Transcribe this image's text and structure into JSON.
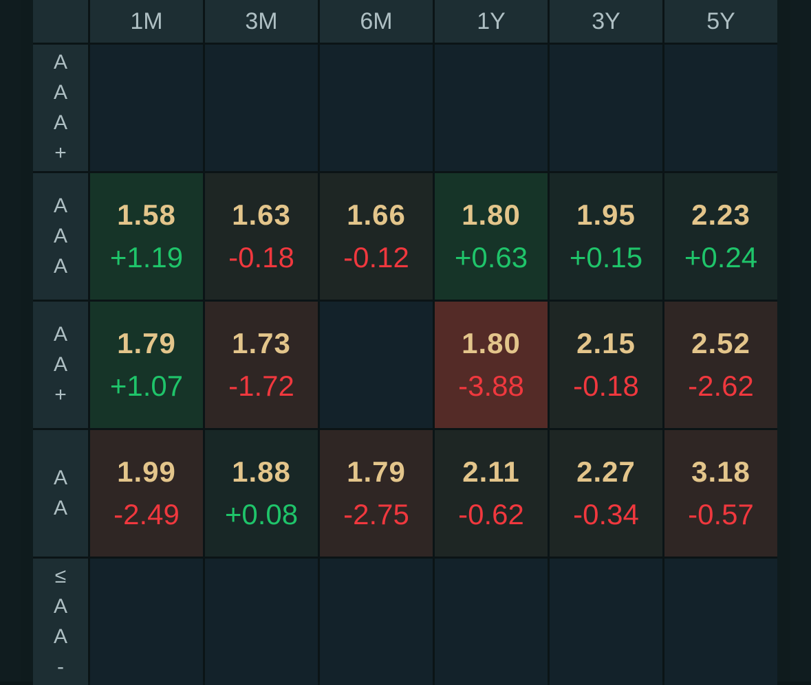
{
  "colors": {
    "yield_text": "#e3c58b",
    "positive": "#1fc46a",
    "negative": "#f0383e",
    "header_bg": "#1d2e33",
    "header_text": "#aebfc3"
  },
  "columns": [
    "1M",
    "3M",
    "6M",
    "1Y",
    "3Y",
    "5Y"
  ],
  "rows": [
    {
      "label_chars": [
        "A",
        "A",
        "A",
        "+"
      ],
      "cells": [
        {
          "yield": null,
          "change": null,
          "tone": "empty"
        },
        {
          "yield": null,
          "change": null,
          "tone": "empty"
        },
        {
          "yield": null,
          "change": null,
          "tone": "empty"
        },
        {
          "yield": null,
          "change": null,
          "tone": "empty"
        },
        {
          "yield": null,
          "change": null,
          "tone": "empty"
        },
        {
          "yield": null,
          "change": null,
          "tone": "empty"
        }
      ]
    },
    {
      "label_chars": [
        "A",
        "A",
        "A"
      ],
      "cells": [
        {
          "yield": "1.58",
          "change": "+1.19",
          "tone": "pos-strong"
        },
        {
          "yield": "1.63",
          "change": "-0.18",
          "tone": "neg-mild"
        },
        {
          "yield": "1.66",
          "change": "-0.12",
          "tone": "neg-mild"
        },
        {
          "yield": "1.80",
          "change": "+0.63",
          "tone": "pos-strong"
        },
        {
          "yield": "1.95",
          "change": "+0.15",
          "tone": "pos-mild"
        },
        {
          "yield": "2.23",
          "change": "+0.24",
          "tone": "pos-mild"
        }
      ]
    },
    {
      "label_chars": [
        "A",
        "A",
        "+"
      ],
      "cells": [
        {
          "yield": "1.79",
          "change": "+1.07",
          "tone": "pos-strong"
        },
        {
          "yield": "1.73",
          "change": "-1.72",
          "tone": "neg-med"
        },
        {
          "yield": null,
          "change": null,
          "tone": "empty"
        },
        {
          "yield": "1.80",
          "change": "-3.88",
          "tone": "neg-strong"
        },
        {
          "yield": "2.15",
          "change": "-0.18",
          "tone": "neg-mild"
        },
        {
          "yield": "2.52",
          "change": "-2.62",
          "tone": "neg-med"
        }
      ]
    },
    {
      "label_chars": [
        "A",
        "A"
      ],
      "cells": [
        {
          "yield": "1.99",
          "change": "-2.49",
          "tone": "neg-med"
        },
        {
          "yield": "1.88",
          "change": "+0.08",
          "tone": "pos-mild"
        },
        {
          "yield": "1.79",
          "change": "-2.75",
          "tone": "neg-med"
        },
        {
          "yield": "2.11",
          "change": "-0.62",
          "tone": "neg-mild"
        },
        {
          "yield": "2.27",
          "change": "-0.34",
          "tone": "neg-mild"
        },
        {
          "yield": "3.18",
          "change": "-0.57",
          "tone": "neg-med"
        }
      ]
    },
    {
      "label_chars": [
        "≤",
        "A",
        "A",
        "-"
      ],
      "cells": [
        {
          "yield": null,
          "change": null,
          "tone": "empty"
        },
        {
          "yield": null,
          "change": null,
          "tone": "empty"
        },
        {
          "yield": null,
          "change": null,
          "tone": "empty"
        },
        {
          "yield": null,
          "change": null,
          "tone": "empty"
        },
        {
          "yield": null,
          "change": null,
          "tone": "empty"
        },
        {
          "yield": null,
          "change": null,
          "tone": "empty"
        }
      ]
    }
  ]
}
